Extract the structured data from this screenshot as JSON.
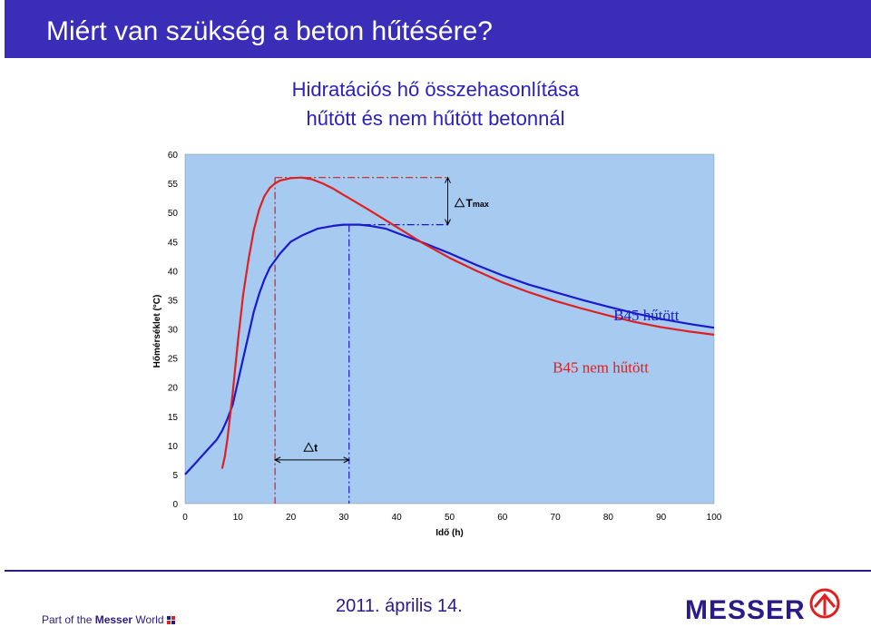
{
  "header": {
    "title": "Miért van szükség a beton hűtésére?"
  },
  "chart_data": {
    "type": "line",
    "title_lines": [
      "Hidratációs hő összehasonlítása",
      "hűtött és nem hűtött betonnál"
    ],
    "xlabel": "Idő (h)",
    "ylabel": "Hőmérséklet (°C)",
    "xlim": [
      0,
      100
    ],
    "ylim": [
      0,
      60
    ],
    "x_ticks": [
      "0",
      "10",
      "20",
      "30",
      "40",
      "50",
      "60",
      "70",
      "80",
      "90",
      "100"
    ],
    "y_ticks": [
      "0",
      "5",
      "10",
      "15",
      "20",
      "25",
      "30",
      "35",
      "40",
      "45",
      "50",
      "55",
      "60"
    ],
    "grid": false,
    "background": "#a6caf0",
    "series": [
      {
        "name": "B45 hűtött",
        "color": "#1a1ad0",
        "x": [
          0,
          2,
          4,
          6,
          7,
          8,
          9,
          10,
          11,
          12,
          13,
          14,
          15,
          16,
          18,
          20,
          22,
          25,
          28,
          30,
          33,
          35,
          38,
          40,
          45,
          50,
          55,
          60,
          65,
          70,
          75,
          80,
          85,
          90,
          95,
          100
        ],
        "y": [
          5,
          7,
          9,
          11,
          12.5,
          14.5,
          17,
          21,
          25,
          29,
          33,
          36,
          38.5,
          40.5,
          43,
          45,
          46,
          47.2,
          47.7,
          47.9,
          47.9,
          47.7,
          47.2,
          46.5,
          44.8,
          43,
          41,
          39.2,
          37.6,
          36.3,
          35,
          33.8,
          32.7,
          31.7,
          30.9,
          30.2
        ]
      },
      {
        "name": "B45 nem hűtött",
        "color": "#e02020",
        "x": [
          7,
          7.5,
          8,
          9,
          10,
          11,
          12,
          13,
          14,
          15,
          16,
          17,
          18,
          20,
          22,
          24,
          26,
          28,
          30,
          35,
          40,
          45,
          50,
          55,
          60,
          65,
          70,
          75,
          80,
          85,
          90,
          95,
          100
        ],
        "y": [
          6,
          8,
          11,
          19,
          28,
          36,
          42,
          47,
          50.5,
          52.8,
          54.2,
          55,
          55.5,
          55.9,
          56,
          55.7,
          55,
          54.1,
          53,
          50.3,
          47.5,
          44.7,
          42.2,
          40,
          38,
          36.3,
          34.8,
          33.5,
          32.3,
          31.2,
          30.3,
          29.6,
          29
        ]
      }
    ],
    "annotations": {
      "delta_t_max": "Tmax",
      "delta_t": "t",
      "vertical_lines_x": [
        17,
        31
      ]
    }
  },
  "footer": {
    "date": "2011. április 14.",
    "tagline_prefix": "Part of the ",
    "tagline_brand": "Messer",
    "tagline_suffix": " World",
    "logo": "MESSER"
  }
}
